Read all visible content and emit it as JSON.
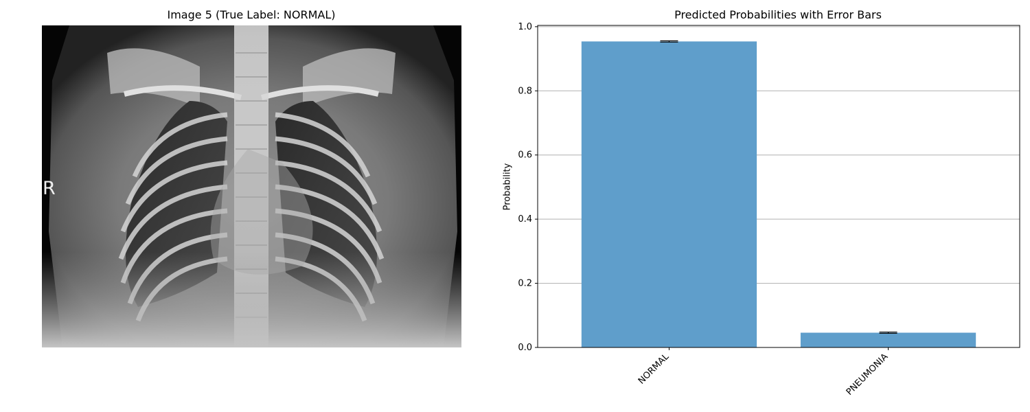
{
  "image_panel": {
    "title": "Image 5 (True Label: NORMAL)",
    "marker": "R"
  },
  "chart_data": {
    "type": "bar",
    "title": "Predicted Probabilities with Error Bars",
    "xlabel": "",
    "ylabel": "Probability",
    "categories": [
      "NORMAL",
      "PNEUMONIA"
    ],
    "values": [
      0.954,
      0.046
    ],
    "errors": [
      0.002,
      0.002
    ],
    "ylim": [
      0.0,
      1.004
    ],
    "yticks": [
      0.0,
      0.2,
      0.4,
      0.6,
      0.8,
      1.0
    ],
    "ytick_labels": [
      "0.0",
      "0.2",
      "0.4",
      "0.6",
      "0.8",
      "1.0"
    ],
    "grid": "y",
    "bar_color": "#5f9ecb",
    "xtick_rotation": -45
  }
}
